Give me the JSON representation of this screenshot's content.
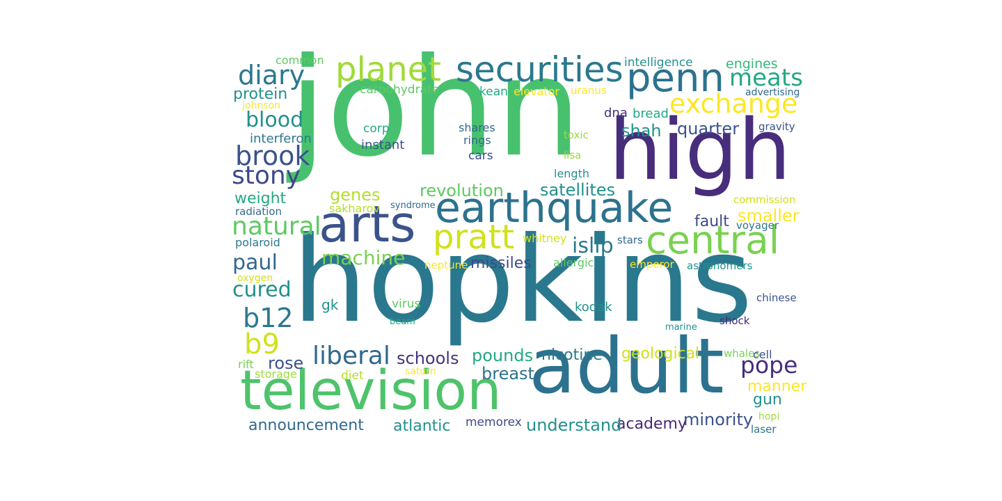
{
  "words": [
    {
      "text": "john",
      "color": "#48c16e"
    },
    {
      "text": "hopkins",
      "color": "#2a788e"
    },
    {
      "text": "high",
      "color": "#472d7b"
    },
    {
      "text": "adult",
      "color": "#2c728e"
    },
    {
      "text": "television",
      "color": "#4ec36b"
    },
    {
      "text": "arts",
      "color": "#3b528b"
    },
    {
      "text": "earthquake",
      "color": "#2c728e"
    },
    {
      "text": "securities",
      "color": "#2a788e"
    },
    {
      "text": "penn",
      "color": "#2c728e"
    },
    {
      "text": "planet",
      "color": "#a0da39"
    },
    {
      "text": "central",
      "color": "#7ad151"
    },
    {
      "text": "pratt",
      "color": "#d0e11c"
    },
    {
      "text": "exchange",
      "color": "#fde725"
    },
    {
      "text": "diary",
      "color": "#2a788e"
    },
    {
      "text": "meats",
      "color": "#22a884"
    },
    {
      "text": "blood",
      "color": "#21918c"
    },
    {
      "text": "brook",
      "color": "#3b528b"
    },
    {
      "text": "stony",
      "color": "#3e4989"
    },
    {
      "text": "natural",
      "color": "#5ec962"
    },
    {
      "text": "liberal",
      "color": "#31688e"
    },
    {
      "text": "b12",
      "color": "#2a788e"
    },
    {
      "text": "b9",
      "color": "#d0e11c"
    },
    {
      "text": "pope",
      "color": "#472d7b"
    },
    {
      "text": "paul",
      "color": "#31688e"
    },
    {
      "text": "cured",
      "color": "#21918c"
    },
    {
      "text": "machine",
      "color": "#7ad151"
    },
    {
      "text": "islip",
      "color": "#2a788e"
    },
    {
      "text": "revolution",
      "color": "#5ec962"
    },
    {
      "text": "satellites",
      "color": "#21918c"
    },
    {
      "text": "quarter",
      "color": "#3b528b"
    },
    {
      "text": "shah",
      "color": "#21918c"
    },
    {
      "text": "smaller",
      "color": "#fde725"
    },
    {
      "text": "genes",
      "color": "#b5de2b"
    },
    {
      "text": "missiles",
      "color": "#3e4989"
    },
    {
      "text": "schools",
      "color": "#46327e"
    },
    {
      "text": "pounds",
      "color": "#22a884"
    },
    {
      "text": "rose",
      "color": "#3b528b"
    },
    {
      "text": "geological",
      "color": "#d0e11c"
    },
    {
      "text": "nicotine",
      "color": "#2a788e"
    },
    {
      "text": "breast",
      "color": "#2c728e"
    },
    {
      "text": "manner",
      "color": "#fde725"
    },
    {
      "text": "minority",
      "color": "#3b528b"
    },
    {
      "text": "academy",
      "color": "#482878"
    },
    {
      "text": "understand",
      "color": "#21918c"
    },
    {
      "text": "atlantic",
      "color": "#21918c"
    },
    {
      "text": "announcement",
      "color": "#31688e"
    },
    {
      "text": "gun",
      "color": "#21918c"
    },
    {
      "text": "weight",
      "color": "#22a884"
    },
    {
      "text": "protein",
      "color": "#21918c"
    },
    {
      "text": "fault",
      "color": "#3e4989"
    },
    {
      "text": "engines",
      "color": "#35b779"
    },
    {
      "text": "intelligence",
      "color": "#21918c"
    },
    {
      "text": "common",
      "color": "#5ec962"
    },
    {
      "text": "carbohydrate",
      "color": "#5ec962"
    },
    {
      "text": "kean",
      "color": "#22a884"
    },
    {
      "text": "elevator",
      "color": "#fde725"
    },
    {
      "text": "uranus",
      "color": "#fde725"
    },
    {
      "text": "advertising",
      "color": "#31688e"
    },
    {
      "text": "johnson",
      "color": "#fde725"
    },
    {
      "text": "dna",
      "color": "#46327e"
    },
    {
      "text": "bread",
      "color": "#22a884"
    },
    {
      "text": "gravity",
      "color": "#3b528b"
    },
    {
      "text": "corp",
      "color": "#22a884"
    },
    {
      "text": "shares",
      "color": "#31688e"
    },
    {
      "text": "rings",
      "color": "#31688e"
    },
    {
      "text": "toxic",
      "color": "#a0da39"
    },
    {
      "text": "interferon",
      "color": "#2a788e"
    },
    {
      "text": "instant",
      "color": "#3b528b"
    },
    {
      "text": "cars",
      "color": "#3e4989"
    },
    {
      "text": "lisa",
      "color": "#a0da39"
    },
    {
      "text": "length",
      "color": "#21918c"
    },
    {
      "text": "radiation",
      "color": "#31688e"
    },
    {
      "text": "sakharov",
      "color": "#b5de2b"
    },
    {
      "text": "syndrome",
      "color": "#31688e"
    },
    {
      "text": "commission",
      "color": "#d0e11c"
    },
    {
      "text": "voyager",
      "color": "#2a788e"
    },
    {
      "text": "polaroid",
      "color": "#2a788e"
    },
    {
      "text": "whitney",
      "color": "#d0e11c"
    },
    {
      "text": "stars",
      "color": "#31688e"
    },
    {
      "text": "neptune",
      "color": "#fde725"
    },
    {
      "text": "allergic",
      "color": "#5ec962"
    },
    {
      "text": "emperor",
      "color": "#fde725"
    },
    {
      "text": "astronomers",
      "color": "#21918c"
    },
    {
      "text": "oxygen",
      "color": "#d0e11c"
    },
    {
      "text": "chinese",
      "color": "#3b528b"
    },
    {
      "text": "gk",
      "color": "#21918c"
    },
    {
      "text": "virus",
      "color": "#5ec962"
    },
    {
      "text": "kodak",
      "color": "#21918c"
    },
    {
      "text": "beam",
      "color": "#22a884"
    },
    {
      "text": "marine",
      "color": "#21918c"
    },
    {
      "text": "shock",
      "color": "#482878"
    },
    {
      "text": "rift",
      "color": "#7ad151"
    },
    {
      "text": "whales",
      "color": "#7ad151"
    },
    {
      "text": "cell",
      "color": "#3b528b"
    },
    {
      "text": "storage",
      "color": "#a0da39"
    },
    {
      "text": "diet",
      "color": "#b5de2b"
    },
    {
      "text": "saturn",
      "color": "#fde725"
    },
    {
      "text": "memorex",
      "color": "#3e4989"
    },
    {
      "text": "hopi",
      "color": "#a0da39"
    },
    {
      "text": "laser",
      "color": "#2c728e"
    }
  ]
}
